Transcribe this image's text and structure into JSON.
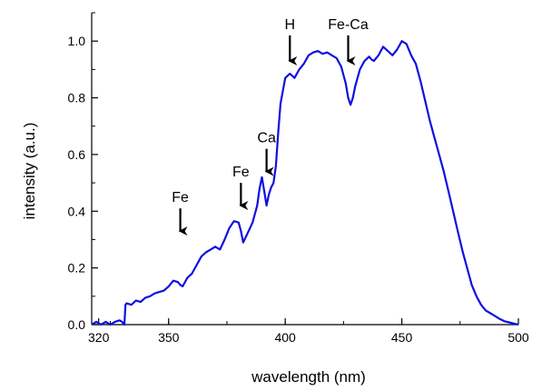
{
  "chart_data": {
    "type": "line",
    "xlabel": "wavelength (nm)",
    "ylabel": "intensity (a.u.)",
    "xlim": [
      317,
      500
    ],
    "ylim": [
      0,
      1.1
    ],
    "x_ticks": [
      320,
      350,
      400,
      450,
      500
    ],
    "y_ticks": [
      "0.0",
      "0.2",
      "0.4",
      "0.6",
      "0.8",
      "1.0"
    ],
    "grid": false,
    "line_color": "#1010e0",
    "series": [
      {
        "x": [
          317,
          319,
          321,
          323,
          325,
          327,
          329,
          330,
          331,
          331.5,
          332,
          334,
          336,
          338,
          340,
          342,
          344,
          346,
          348,
          350,
          352,
          354,
          355,
          356,
          358,
          360,
          362,
          364,
          366,
          368,
          370,
          372,
          374,
          376,
          378,
          380,
          381,
          382,
          384,
          386,
          388,
          389,
          390,
          391,
          392,
          393,
          394,
          395,
          396,
          397,
          398,
          400,
          402,
          404,
          406,
          408,
          410,
          412,
          414,
          416,
          418,
          420,
          422,
          424,
          426,
          427,
          428,
          429,
          430,
          432,
          434,
          436,
          437,
          438,
          440,
          442,
          444,
          446,
          448,
          450,
          452,
          454,
          456,
          458,
          460,
          462,
          464,
          466,
          468,
          470,
          472,
          474,
          476,
          478,
          480,
          482,
          484,
          486,
          488,
          490,
          492,
          494,
          496,
          498,
          500
        ],
        "y": [
          0.0,
          0.01,
          0.0,
          0.01,
          0.0,
          0.01,
          0.015,
          0.01,
          0.0,
          0.07,
          0.075,
          0.07,
          0.085,
          0.08,
          0.095,
          0.1,
          0.11,
          0.115,
          0.12,
          0.135,
          0.155,
          0.15,
          0.14,
          0.135,
          0.165,
          0.18,
          0.21,
          0.24,
          0.255,
          0.265,
          0.275,
          0.265,
          0.3,
          0.34,
          0.365,
          0.36,
          0.33,
          0.29,
          0.325,
          0.36,
          0.42,
          0.48,
          0.52,
          0.47,
          0.42,
          0.46,
          0.485,
          0.5,
          0.56,
          0.68,
          0.78,
          0.87,
          0.885,
          0.87,
          0.9,
          0.92,
          0.95,
          0.96,
          0.965,
          0.955,
          0.96,
          0.95,
          0.94,
          0.91,
          0.85,
          0.8,
          0.775,
          0.8,
          0.84,
          0.9,
          0.93,
          0.945,
          0.935,
          0.93,
          0.95,
          0.98,
          0.965,
          0.95,
          0.97,
          1.0,
          0.99,
          0.95,
          0.92,
          0.86,
          0.79,
          0.72,
          0.66,
          0.6,
          0.54,
          0.47,
          0.4,
          0.33,
          0.26,
          0.2,
          0.14,
          0.1,
          0.07,
          0.05,
          0.04,
          0.03,
          0.02,
          0.012,
          0.008,
          0.004,
          0.0
        ]
      }
    ],
    "annotations": [
      {
        "label": "Fe",
        "x": 355,
        "arrow_top": 0.41,
        "arrow_bottom": 0.33
      },
      {
        "label": "Fe",
        "x": 381,
        "arrow_top": 0.5,
        "arrow_bottom": 0.42
      },
      {
        "label": "Ca",
        "x": 392,
        "arrow_top": 0.62,
        "arrow_bottom": 0.54
      },
      {
        "label": "H",
        "x": 402,
        "arrow_top": 1.02,
        "arrow_bottom": 0.93
      },
      {
        "label": "Fe-Ca",
        "x": 427,
        "arrow_top": 1.02,
        "arrow_bottom": 0.93
      }
    ]
  }
}
